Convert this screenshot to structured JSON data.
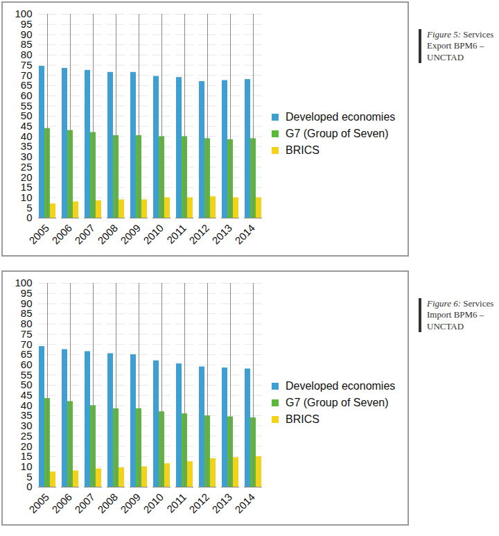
{
  "chart_data": [
    {
      "type": "bar",
      "title": "Figure 5: Services Export BPM6 – UNCTAD",
      "categories": [
        "2005",
        "2006",
        "2007",
        "2008",
        "2009",
        "2010",
        "2011",
        "2012",
        "2013",
        "2014"
      ],
      "series": [
        {
          "name": "Developed economies",
          "color": "#3f9fd0",
          "values": [
            74.5,
            73.5,
            72.5,
            71.5,
            71.5,
            69.5,
            69,
            67,
            67.5,
            68
          ]
        },
        {
          "name": "G7 (Group of Seven)",
          "color": "#5cb83a",
          "values": [
            44,
            43,
            42,
            40.5,
            40.5,
            40,
            40,
            39,
            38.5,
            39
          ]
        },
        {
          "name": "BRICS",
          "color": "#f2d21a",
          "values": [
            7,
            8,
            8.5,
            9,
            9,
            10,
            10,
            10.5,
            10,
            10
          ]
        }
      ],
      "ylim": [
        0,
        100
      ],
      "yticks": [
        0,
        5,
        10,
        15,
        20,
        25,
        30,
        35,
        40,
        45,
        50,
        55,
        60,
        65,
        70,
        75,
        80,
        85,
        90,
        95,
        100
      ],
      "grid": true,
      "legend": "right"
    },
    {
      "type": "bar",
      "title": "Figure 6: Services Import BPM6 – UNCTAD",
      "categories": [
        "2005",
        "2006",
        "2007",
        "2008",
        "2009",
        "2010",
        "2011",
        "2012",
        "2013",
        "2014"
      ],
      "series": [
        {
          "name": "Developed economies",
          "color": "#3f9fd0",
          "values": [
            69,
            67.5,
            66.5,
            65.5,
            65,
            62,
            60.5,
            59,
            58.5,
            58
          ]
        },
        {
          "name": "G7 (Group of Seven)",
          "color": "#5cb83a",
          "values": [
            43.5,
            42,
            40,
            38.5,
            38.5,
            37,
            36,
            35,
            34.5,
            34
          ]
        },
        {
          "name": "BRICS",
          "color": "#f2d21a",
          "values": [
            7.5,
            8,
            9,
            9.5,
            10,
            11.5,
            12.5,
            14,
            14.5,
            15
          ]
        }
      ],
      "ylim": [
        0,
        100
      ],
      "yticks": [
        0,
        5,
        10,
        15,
        20,
        25,
        30,
        35,
        40,
        45,
        50,
        55,
        60,
        65,
        70,
        75,
        80,
        85,
        90,
        95,
        100
      ],
      "grid": true,
      "legend": "right"
    }
  ]
}
